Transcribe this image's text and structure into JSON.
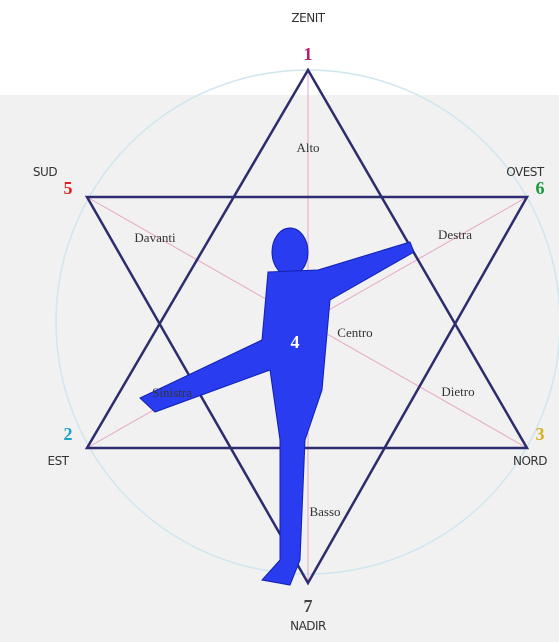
{
  "points": [
    {
      "number": "1",
      "name": "ZENIT"
    },
    {
      "number": "5",
      "name": "SUD"
    },
    {
      "number": "6",
      "name": "OVEST"
    },
    {
      "number": "2",
      "name": "EST"
    },
    {
      "number": "3",
      "name": "NORD"
    },
    {
      "number": "7",
      "name": "NADIR"
    }
  ],
  "center_number": "4",
  "regions": [
    "Alto",
    "Davanti",
    "Destra",
    "Centro",
    "Sinistra",
    "Dietro",
    "Basso"
  ]
}
